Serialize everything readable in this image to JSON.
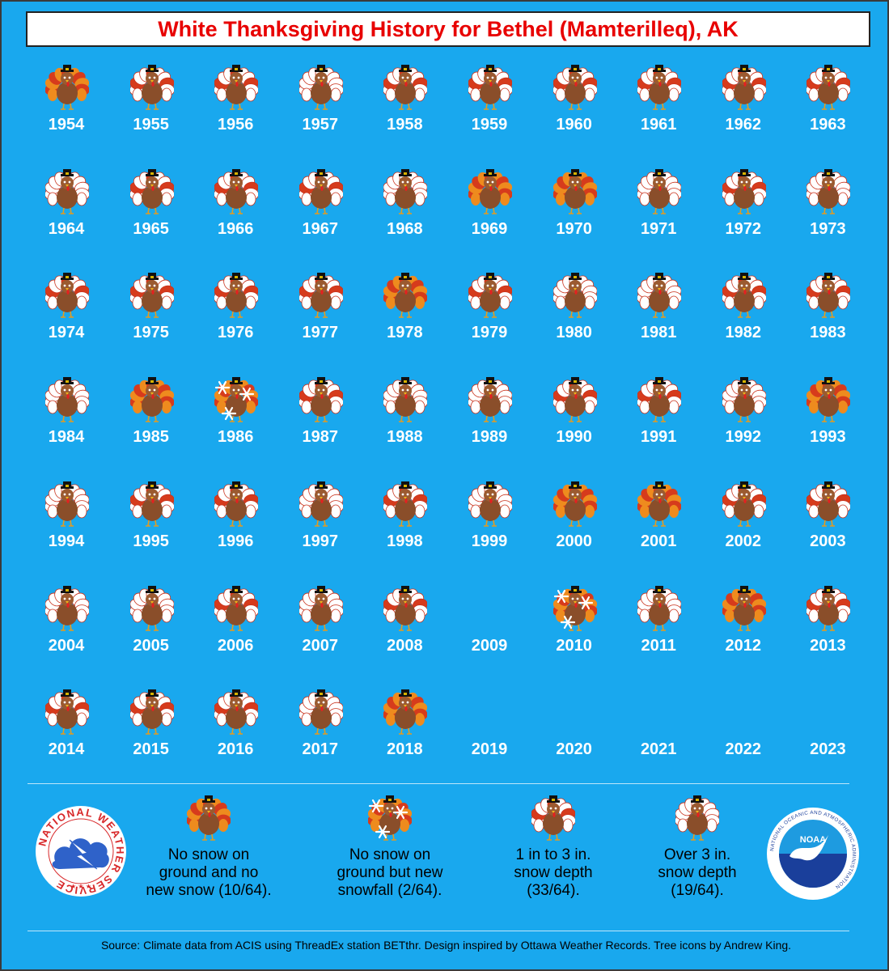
{
  "title": "White Thanksgiving History for Bethel (Mamterilleq), AK",
  "colors": {
    "background": "#19a8ee",
    "title": "#e80000",
    "year_text": "#ffffff",
    "turkey_body": "#8a4e2a",
    "feather_red": "#d63b1c",
    "feather_orange": "#ee8b1e",
    "snow": "#ffffff"
  },
  "chart_data": {
    "type": "table",
    "title": "White Thanksgiving History for Bethel (Mamterilleq), AK",
    "categories": {
      "none": "No snow on ground and no new snow (10/64).",
      "new": "No snow on ground but new snowfall (2/64).",
      "light": "1 in to 3 in. snow depth (33/64).",
      "deep": "Over 3 in. snow depth (19/64)."
    },
    "years": [
      {
        "year": "1954",
        "cat": "none"
      },
      {
        "year": "1955",
        "cat": "light"
      },
      {
        "year": "1956",
        "cat": "light"
      },
      {
        "year": "1957",
        "cat": "deep"
      },
      {
        "year": "1958",
        "cat": "light"
      },
      {
        "year": "1959",
        "cat": "light"
      },
      {
        "year": "1960",
        "cat": "light"
      },
      {
        "year": "1961",
        "cat": "light"
      },
      {
        "year": "1962",
        "cat": "light"
      },
      {
        "year": "1963",
        "cat": "light"
      },
      {
        "year": "1964",
        "cat": "deep"
      },
      {
        "year": "1965",
        "cat": "light"
      },
      {
        "year": "1966",
        "cat": "light"
      },
      {
        "year": "1967",
        "cat": "light"
      },
      {
        "year": "1968",
        "cat": "deep"
      },
      {
        "year": "1969",
        "cat": "none"
      },
      {
        "year": "1970",
        "cat": "none"
      },
      {
        "year": "1971",
        "cat": "deep"
      },
      {
        "year": "1972",
        "cat": "light"
      },
      {
        "year": "1973",
        "cat": "deep"
      },
      {
        "year": "1974",
        "cat": "light"
      },
      {
        "year": "1975",
        "cat": "light"
      },
      {
        "year": "1976",
        "cat": "light"
      },
      {
        "year": "1977",
        "cat": "light"
      },
      {
        "year": "1978",
        "cat": "none"
      },
      {
        "year": "1979",
        "cat": "light"
      },
      {
        "year": "1980",
        "cat": "deep"
      },
      {
        "year": "1981",
        "cat": "deep"
      },
      {
        "year": "1982",
        "cat": "light"
      },
      {
        "year": "1983",
        "cat": "light"
      },
      {
        "year": "1984",
        "cat": "deep"
      },
      {
        "year": "1985",
        "cat": "none"
      },
      {
        "year": "1986",
        "cat": "new"
      },
      {
        "year": "1987",
        "cat": "light"
      },
      {
        "year": "1988",
        "cat": "deep"
      },
      {
        "year": "1989",
        "cat": "deep"
      },
      {
        "year": "1990",
        "cat": "light"
      },
      {
        "year": "1991",
        "cat": "light"
      },
      {
        "year": "1992",
        "cat": "deep"
      },
      {
        "year": "1993",
        "cat": "none"
      },
      {
        "year": "1994",
        "cat": "deep"
      },
      {
        "year": "1995",
        "cat": "light"
      },
      {
        "year": "1996",
        "cat": "light"
      },
      {
        "year": "1997",
        "cat": "deep"
      },
      {
        "year": "1998",
        "cat": "light"
      },
      {
        "year": "1999",
        "cat": "deep"
      },
      {
        "year": "2000",
        "cat": "none"
      },
      {
        "year": "2001",
        "cat": "none"
      },
      {
        "year": "2002",
        "cat": "light"
      },
      {
        "year": "2003",
        "cat": "light"
      },
      {
        "year": "2004",
        "cat": "deep"
      },
      {
        "year": "2005",
        "cat": "deep"
      },
      {
        "year": "2006",
        "cat": "light"
      },
      {
        "year": "2007",
        "cat": "deep"
      },
      {
        "year": "2008",
        "cat": "light"
      },
      {
        "year": "2009",
        "cat": "missing"
      },
      {
        "year": "2010",
        "cat": "new"
      },
      {
        "year": "2011",
        "cat": "deep"
      },
      {
        "year": "2012",
        "cat": "none"
      },
      {
        "year": "2013",
        "cat": "light"
      },
      {
        "year": "2014",
        "cat": "light"
      },
      {
        "year": "2015",
        "cat": "light"
      },
      {
        "year": "2016",
        "cat": "light"
      },
      {
        "year": "2017",
        "cat": "deep"
      },
      {
        "year": "2018",
        "cat": "none"
      },
      {
        "year": "2019",
        "cat": "missing"
      },
      {
        "year": "2020",
        "cat": "missing"
      },
      {
        "year": "2021",
        "cat": "missing"
      },
      {
        "year": "2022",
        "cat": "missing"
      },
      {
        "year": "2023",
        "cat": "missing"
      }
    ]
  },
  "legend": [
    {
      "cat": "none",
      "lines": [
        "No snow on",
        "ground and no",
        "new snow (10/64)."
      ]
    },
    {
      "cat": "new",
      "lines": [
        "No snow on",
        "ground but new",
        "snowfall (2/64)."
      ]
    },
    {
      "cat": "light",
      "lines": [
        "1 in to 3 in.",
        "snow depth",
        "(33/64)."
      ]
    },
    {
      "cat": "deep",
      "lines": [
        "Over 3 in.",
        "snow depth",
        "(19/64)."
      ]
    }
  ],
  "logos": {
    "nws_text": "NATIONAL WEATHER SERVICE",
    "noaa_label": "NOAA",
    "noaa_ring": "NATIONAL OCEANIC AND ATMOSPHERIC ADMINISTRATION",
    "noaa_ring_bottom": "U.S. DEPARTMENT OF COMMERCE"
  },
  "source": "Source: Climate data from ACIS using ThreadEx station BETthr. Design inspired by Ottawa Weather Records. Tree icons by Andrew King."
}
